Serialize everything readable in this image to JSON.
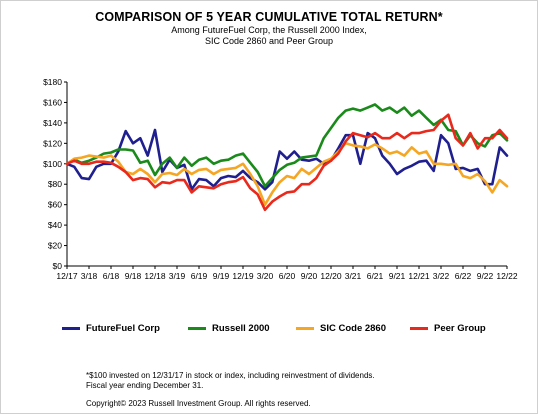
{
  "title": "COMPARISON OF 5 YEAR CUMULATIVE TOTAL RETURN*",
  "subtitle_line1": "Among FutureFuel Corp, the Russell 2000 Index,",
  "subtitle_line2": "SIC Code 2860 and Peer Group",
  "footnote_line1": "*$100 invested on 12/31/17 in stock or index, including reinvestment of dividends.",
  "footnote_line2": "Fiscal year ending December 31.",
  "copyright": "Copyright© 2023 Russell Investment Group. All rights reserved.",
  "chart_data": {
    "type": "line",
    "x": [
      "12/17",
      "1/18",
      "2/18",
      "3/18",
      "4/18",
      "5/18",
      "6/18",
      "7/18",
      "8/18",
      "9/18",
      "10/18",
      "11/18",
      "12/18",
      "1/19",
      "2/19",
      "3/19",
      "4/19",
      "5/19",
      "6/19",
      "7/19",
      "8/19",
      "9/19",
      "10/19",
      "11/19",
      "12/19",
      "1/20",
      "2/20",
      "3/20",
      "4/20",
      "5/20",
      "6/20",
      "7/20",
      "8/20",
      "9/20",
      "10/20",
      "11/20",
      "12/20",
      "1/21",
      "2/21",
      "3/21",
      "4/21",
      "5/21",
      "6/21",
      "7/21",
      "8/21",
      "9/21",
      "10/21",
      "11/21",
      "12/21",
      "1/22",
      "2/22",
      "3/22",
      "4/22",
      "5/22",
      "6/22",
      "7/22",
      "8/22",
      "9/22",
      "10/22",
      "11/22",
      "12/22"
    ],
    "x_tick_labels": [
      "12/17",
      "3/18",
      "6/18",
      "9/18",
      "12/18",
      "3/19",
      "6/19",
      "9/19",
      "12/19",
      "3/20",
      "6/20",
      "9/20",
      "12/20",
      "3/21",
      "6/21",
      "9/21",
      "12/21",
      "3/22",
      "6/22",
      "9/22",
      "12/22"
    ],
    "y_tick_labels": [
      "$0",
      "$20",
      "$40",
      "$60",
      "$80",
      "$100",
      "$120",
      "$140",
      "$160",
      "$180"
    ],
    "ylim": [
      0,
      180
    ],
    "grid": false,
    "legend_position": "bottom",
    "series": [
      {
        "name": "FutureFuel Corp",
        "color": "#1f1f8f",
        "values": [
          100,
          97,
          86,
          85,
          97,
          100,
          100,
          112,
          132,
          120,
          125,
          108,
          133,
          92,
          104,
          96,
          99,
          75,
          85,
          84,
          78,
          86,
          88,
          87,
          93,
          86,
          82,
          75,
          82,
          112,
          105,
          112,
          104,
          103,
          105,
          100,
          103,
          115,
          128,
          128,
          100,
          130,
          125,
          108,
          100,
          90,
          95,
          98,
          102,
          103,
          93,
          128,
          120,
          95,
          96,
          93,
          95,
          80,
          80,
          116,
          108
        ]
      },
      {
        "name": "Russell 2000",
        "color": "#1a8a1a",
        "values": [
          100,
          104,
          101,
          103,
          106,
          110,
          111,
          114,
          114,
          113,
          101,
          103,
          89,
          100,
          106,
          96,
          106,
          98,
          104,
          106,
          100,
          103,
          104,
          108,
          110,
          101,
          92,
          78,
          86,
          94,
          99,
          101,
          106,
          107,
          108,
          125,
          135,
          145,
          152,
          154,
          152,
          155,
          158,
          152,
          155,
          150,
          155,
          147,
          152,
          145,
          138,
          143,
          133,
          132,
          118,
          128,
          120,
          117,
          128,
          130,
          123
        ]
      },
      {
        "name": "SIC Code 2860",
        "color": "#f5a623",
        "values": [
          100,
          105,
          106,
          108,
          107,
          106,
          108,
          102,
          92,
          90,
          95,
          90,
          82,
          90,
          91,
          89,
          95,
          90,
          94,
          95,
          90,
          94,
          95,
          96,
          100,
          90,
          78,
          60,
          72,
          82,
          88,
          86,
          95,
          90,
          96,
          102,
          105,
          112,
          120,
          118,
          117,
          115,
          119,
          115,
          110,
          112,
          108,
          116,
          110,
          112,
          100,
          100,
          99,
          100,
          88,
          86,
          90,
          83,
          72,
          84,
          78
        ]
      },
      {
        "name": "Peer Group",
        "color": "#e8291c",
        "values": [
          100,
          103,
          100,
          100,
          102,
          102,
          101,
          97,
          92,
          84,
          86,
          85,
          77,
          82,
          81,
          84,
          84,
          72,
          78,
          77,
          76,
          80,
          82,
          83,
          87,
          76,
          70,
          55,
          63,
          68,
          72,
          73,
          80,
          80,
          86,
          98,
          103,
          110,
          122,
          130,
          128,
          126,
          130,
          125,
          125,
          130,
          125,
          130,
          130,
          132,
          133,
          142,
          148,
          125,
          118,
          130,
          115,
          125,
          125,
          133,
          125
        ]
      }
    ]
  }
}
